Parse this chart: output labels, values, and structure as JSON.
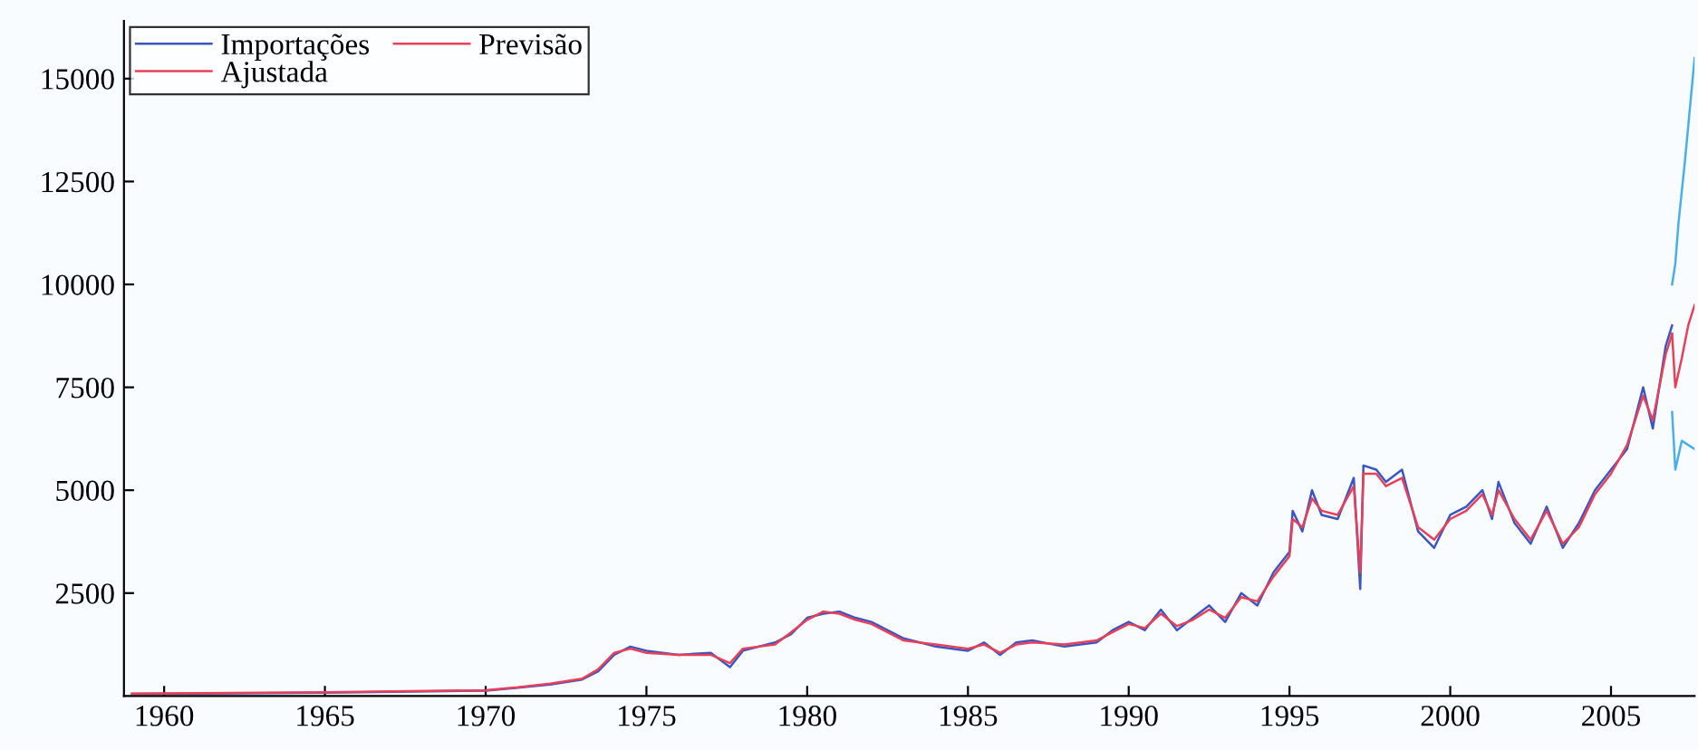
{
  "chart_data": {
    "type": "line",
    "xlim": [
      1958.75,
      2007.6
    ],
    "ylim": [
      0,
      16400
    ],
    "xticks": [
      1960,
      1965,
      1970,
      1975,
      1980,
      1985,
      1990,
      1995,
      2000,
      2005
    ],
    "yticks": [
      2500,
      5000,
      7500,
      10000,
      12500,
      15000
    ],
    "grid": false,
    "legend": "top left",
    "line_style": "solid",
    "marker": "none",
    "series": [
      {
        "name": "Importações",
        "color": "#3a56c0",
        "x": [
          1959,
          1965,
          1970,
          1971,
          1972,
          1973,
          1973.5,
          1974,
          1974.5,
          1975,
          1976,
          1977,
          1977.6,
          1978,
          1979,
          1979.5,
          1980,
          1980.5,
          1981,
          1981.5,
          1982,
          1983,
          1984,
          1985,
          1985.5,
          1986,
          1986.5,
          1987,
          1988,
          1989,
          1989.5,
          1990,
          1990.5,
          1991,
          1991.5,
          1992,
          1992.5,
          1993,
          1993.5,
          1994,
          1994.5,
          1995,
          1995.1,
          1995.4,
          1995.7,
          1996,
          1996.5,
          1997,
          1997.2,
          1997.3,
          1997.7,
          1998,
          1998.5,
          1999,
          1999.5,
          2000,
          2000.5,
          2001,
          2001.3,
          2001.5,
          2002,
          2002.5,
          2003,
          2003.5,
          2004,
          2004.5,
          2005,
          2005.5,
          2006,
          2006.3,
          2006.7,
          2006.9
        ],
        "values": [
          50,
          80,
          130,
          200,
          280,
          400,
          600,
          1000,
          1200,
          1100,
          1000,
          1050,
          700,
          1100,
          1300,
          1500,
          1900,
          2000,
          2050,
          1900,
          1800,
          1400,
          1200,
          1100,
          1300,
          1000,
          1300,
          1350,
          1200,
          1300,
          1600,
          1800,
          1600,
          2100,
          1600,
          1900,
          2200,
          1800,
          2500,
          2200,
          3000,
          3500,
          4500,
          4000,
          5000,
          4400,
          4300,
          5300,
          2600,
          5600,
          5500,
          5200,
          5500,
          4000,
          3600,
          4400,
          4600,
          5000,
          4300,
          5200,
          4200,
          3700,
          4600,
          3600,
          4200,
          5000,
          5500,
          6000,
          7500,
          6500,
          8500,
          9000
        ]
      },
      {
        "name": "Ajustada",
        "color": "#e8405a",
        "x": [
          1959,
          1965,
          1970,
          1971,
          1972,
          1973,
          1973.5,
          1974,
          1974.5,
          1975,
          1976,
          1977,
          1977.6,
          1978,
          1979,
          1979.5,
          1980,
          1980.5,
          1981,
          1981.5,
          1982,
          1983,
          1984,
          1985,
          1985.5,
          1986,
          1986.5,
          1987,
          1988,
          1989,
          1989.5,
          1990,
          1990.5,
          1991,
          1991.5,
          1992,
          1992.5,
          1993,
          1993.5,
          1994,
          1994.5,
          1995,
          1995.1,
          1995.4,
          1995.7,
          1996,
          1996.5,
          1997,
          1997.2,
          1997.3,
          1997.7,
          1998,
          1998.5,
          1999,
          1999.5,
          2000,
          2000.5,
          2001,
          2001.3,
          2001.5,
          2002,
          2002.5,
          2003,
          2003.5,
          2004,
          2004.5,
          2005,
          2005.5,
          2006,
          2006.3,
          2006.7,
          2006.9
        ],
        "values": [
          60,
          90,
          140,
          210,
          300,
          420,
          650,
          1050,
          1150,
          1050,
          1000,
          1000,
          800,
          1150,
          1250,
          1550,
          1850,
          2050,
          2000,
          1850,
          1750,
          1350,
          1250,
          1150,
          1250,
          1050,
          1250,
          1300,
          1250,
          1350,
          1550,
          1750,
          1650,
          2000,
          1700,
          1850,
          2100,
          1900,
          2400,
          2300,
          2900,
          3400,
          4300,
          4100,
          4800,
          4500,
          4400,
          5100,
          3000,
          5400,
          5400,
          5100,
          5300,
          4100,
          3800,
          4300,
          4500,
          4900,
          4400,
          5000,
          4300,
          3800,
          4500,
          3700,
          4100,
          4900,
          5400,
          6100,
          7300,
          6700,
          8300,
          8800
        ]
      },
      {
        "name": "Previsão",
        "color": "#e8405a",
        "x": [
          2006.9,
          2007.0,
          2007.2,
          2007.4,
          2007.6
        ],
        "values": [
          8800,
          7500,
          8200,
          9000,
          9500
        ]
      },
      {
        "color": "#4aaee8",
        "x": [
          2006.9,
          2007.0,
          2007.1,
          2007.3,
          2007.6
        ],
        "values": [
          10000,
          10500,
          11500,
          13000,
          15500
        ]
      },
      {
        "color": "#4aaee8",
        "x": [
          2006.9,
          2007.0,
          2007.2,
          2007.6
        ],
        "values": [
          6900,
          5500,
          6200,
          6000
        ]
      }
    ]
  }
}
